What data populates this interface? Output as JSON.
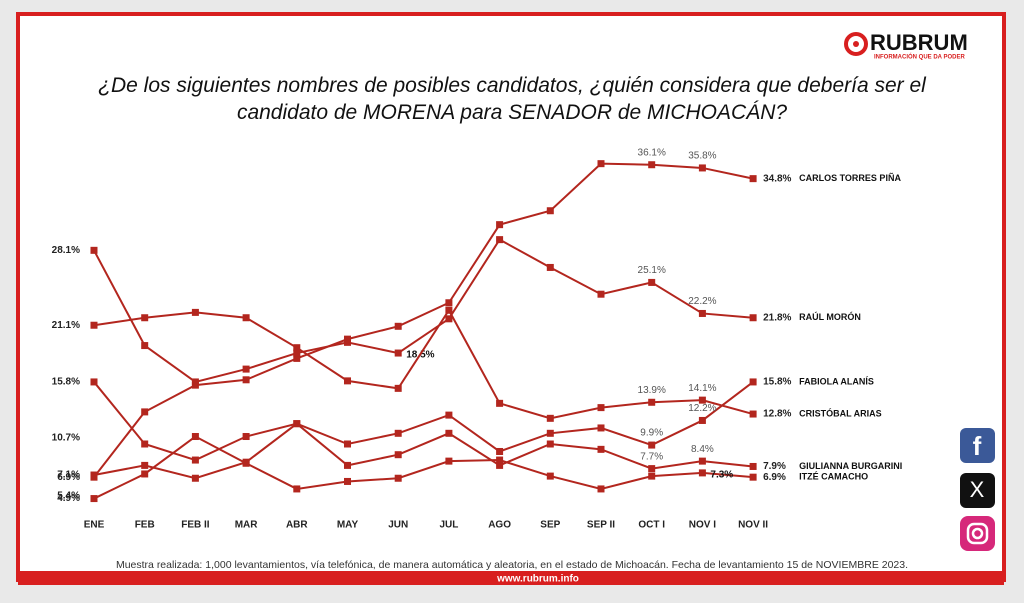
{
  "brand": {
    "name": "RUBRUM",
    "tagline": "INFORMACIÓN QUE DA PODER"
  },
  "chart_data": {
    "type": "line",
    "title": "¿De los siguientes nombres de posibles candidatos, ¿quién considera que debería ser el candidato de MORENA para SENADOR de MICHOACÁN?",
    "categories": [
      "ENE",
      "FEB",
      "FEB II",
      "MAR",
      "ABR",
      "MAY",
      "JUN",
      "JUL",
      "AGO",
      "SEP",
      "SEP II",
      "OCT I",
      "NOV I",
      "NOV II"
    ],
    "series": [
      {
        "name": "CARLOS TORRES PIÑA",
        "color": "#b3261e",
        "values": [
          6.9,
          13.0,
          15.5,
          16.0,
          18.0,
          19.8,
          21.0,
          23.2,
          30.5,
          31.8,
          36.2,
          36.1,
          35.8,
          34.8
        ],
        "value_labels": [
          "6.9%",
          null,
          null,
          null,
          null,
          null,
          null,
          null,
          null,
          null,
          null,
          "36.1%",
          "35.8%",
          "34.8%"
        ]
      },
      {
        "name": "RAÚL MORÓN",
        "color": "#b3261e",
        "values": [
          28.1,
          19.2,
          15.8,
          17.0,
          18.5,
          19.5,
          18.5,
          21.7,
          29.1,
          26.5,
          24.0,
          25.1,
          22.2,
          21.8
        ],
        "value_labels": [
          "28.1%",
          null,
          null,
          null,
          null,
          null,
          "18.5%",
          null,
          null,
          null,
          null,
          "25.1%",
          "22.2%",
          "21.8%"
        ]
      },
      {
        "name": "FABIOLA ALANÍS",
        "color": "#b3261e",
        "values": [
          15.8,
          10.0,
          8.5,
          10.7,
          11.9,
          10.0,
          11.0,
          12.7,
          9.3,
          11.0,
          11.5,
          9.9,
          12.2,
          15.8
        ],
        "value_labels": [
          "15.8%",
          null,
          null,
          null,
          null,
          null,
          null,
          null,
          null,
          null,
          null,
          "9.9%",
          "12.2%",
          "15.8%"
        ]
      },
      {
        "name": "CRISTÓBAL ARIAS",
        "color": "#b3261e",
        "values": [
          21.1,
          21.8,
          22.3,
          21.8,
          19.0,
          15.9,
          15.2,
          22.5,
          13.8,
          12.4,
          13.4,
          13.9,
          14.1,
          12.8
        ],
        "value_labels": [
          "21.1%",
          null,
          null,
          null,
          null,
          null,
          null,
          null,
          null,
          null,
          null,
          "13.9%",
          "14.1%",
          "12.8%"
        ]
      },
      {
        "name": "GIULIANNA BURGARINI",
        "color": "#b3261e",
        "values": [
          7.1,
          8.0,
          6.8,
          8.3,
          11.9,
          8.0,
          9.0,
          11.0,
          8.0,
          10.0,
          9.5,
          7.7,
          8.4,
          7.9
        ],
        "value_labels": [
          "7.1%",
          null,
          null,
          null,
          null,
          null,
          null,
          null,
          null,
          null,
          null,
          "7.7%",
          "8.4%",
          "7.9%"
        ]
      },
      {
        "name": "ITZÉ CAMACHO",
        "color": "#b3261e",
        "values": [
          4.9,
          7.2,
          10.7,
          8.2,
          5.8,
          6.5,
          6.8,
          8.4,
          8.5,
          7.0,
          5.8,
          7.0,
          7.3,
          6.9
        ],
        "value_labels": [
          "4.9%",
          null,
          null,
          null,
          null,
          null,
          null,
          null,
          null,
          null,
          null,
          null,
          "7.3%",
          "6.9%"
        ]
      }
    ],
    "annotations": [
      "10.7%",
      "5.4%"
    ],
    "note": "Muestra realizada: 1,000 levantamientos, vía telefónica, de manera automática y aleatoria, en el estado de Michoacán. Fecha de levantamiento 15 de NOVIEMBRE 2023.",
    "url": "www.rubrum.info"
  }
}
